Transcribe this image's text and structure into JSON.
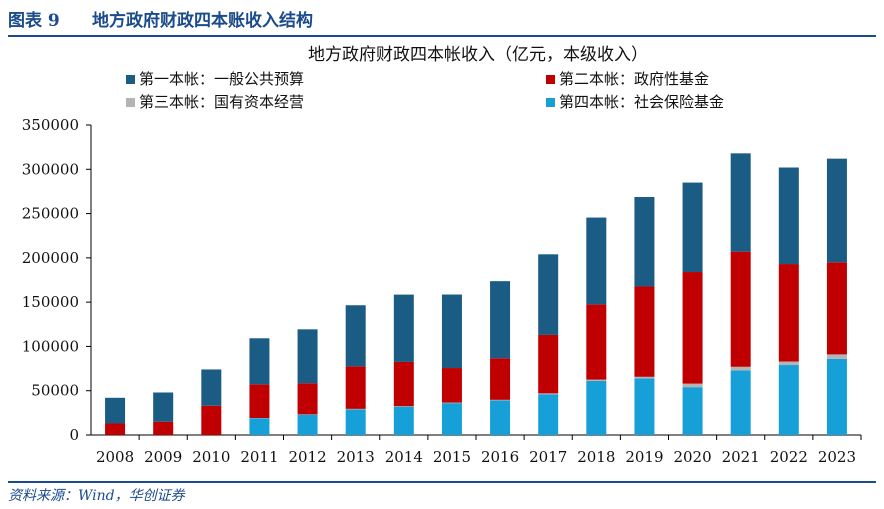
{
  "figure": {
    "number": "图表 9",
    "title": "地方政府财政四本账收入结构",
    "source": "资料来源：Wind，华创证券"
  },
  "chart_data": {
    "type": "bar",
    "stacked": true,
    "title": "地方政府财政四本帐收入（亿元，本级收入）",
    "legend_position": "top",
    "grid": false,
    "ylim": [
      0,
      350000
    ],
    "yticks": [
      0,
      50000,
      100000,
      150000,
      200000,
      250000,
      300000,
      350000
    ],
    "yticklabels": [
      "0",
      "50000",
      "100000",
      "150000",
      "200000",
      "250000",
      "300000",
      "350000"
    ],
    "categories": [
      "2008",
      "2009",
      "2010",
      "2011",
      "2012",
      "2013",
      "2014",
      "2015",
      "2016",
      "2017",
      "2018",
      "2019",
      "2020",
      "2021",
      "2022",
      "2023"
    ],
    "series": [
      {
        "name": "第四本帐：社会保险基金",
        "color": "#17a0d8",
        "values": [
          0,
          0,
          0,
          19000,
          23000,
          29000,
          32000,
          36000,
          39000,
          46000,
          61000,
          64000,
          54000,
          73000,
          79000,
          86000
        ]
      },
      {
        "name": "第三本帐：国有资本经营",
        "color": "#b4b4b4",
        "values": [
          0,
          0,
          0,
          200,
          300,
          500,
          500,
          600,
          700,
          1000,
          1500,
          1700,
          4000,
          4000,
          4000,
          5000
        ]
      },
      {
        "name": "第二本帐：政府性基金",
        "color": "#c00000",
        "values": [
          13000,
          15000,
          33000,
          38000,
          35000,
          48000,
          50000,
          39000,
          47000,
          66000,
          85000,
          102000,
          126000,
          130000,
          110000,
          104000
        ]
      },
      {
        "name": "第一本帐：一般公共预算",
        "color": "#1b5c85",
        "values": [
          29000,
          33000,
          41000,
          52000,
          61000,
          69000,
          76000,
          83000,
          87000,
          91000,
          98000,
          101000,
          101000,
          111000,
          109000,
          117000
        ]
      }
    ],
    "legend_order": [
      3,
      2,
      1,
      0
    ]
  }
}
